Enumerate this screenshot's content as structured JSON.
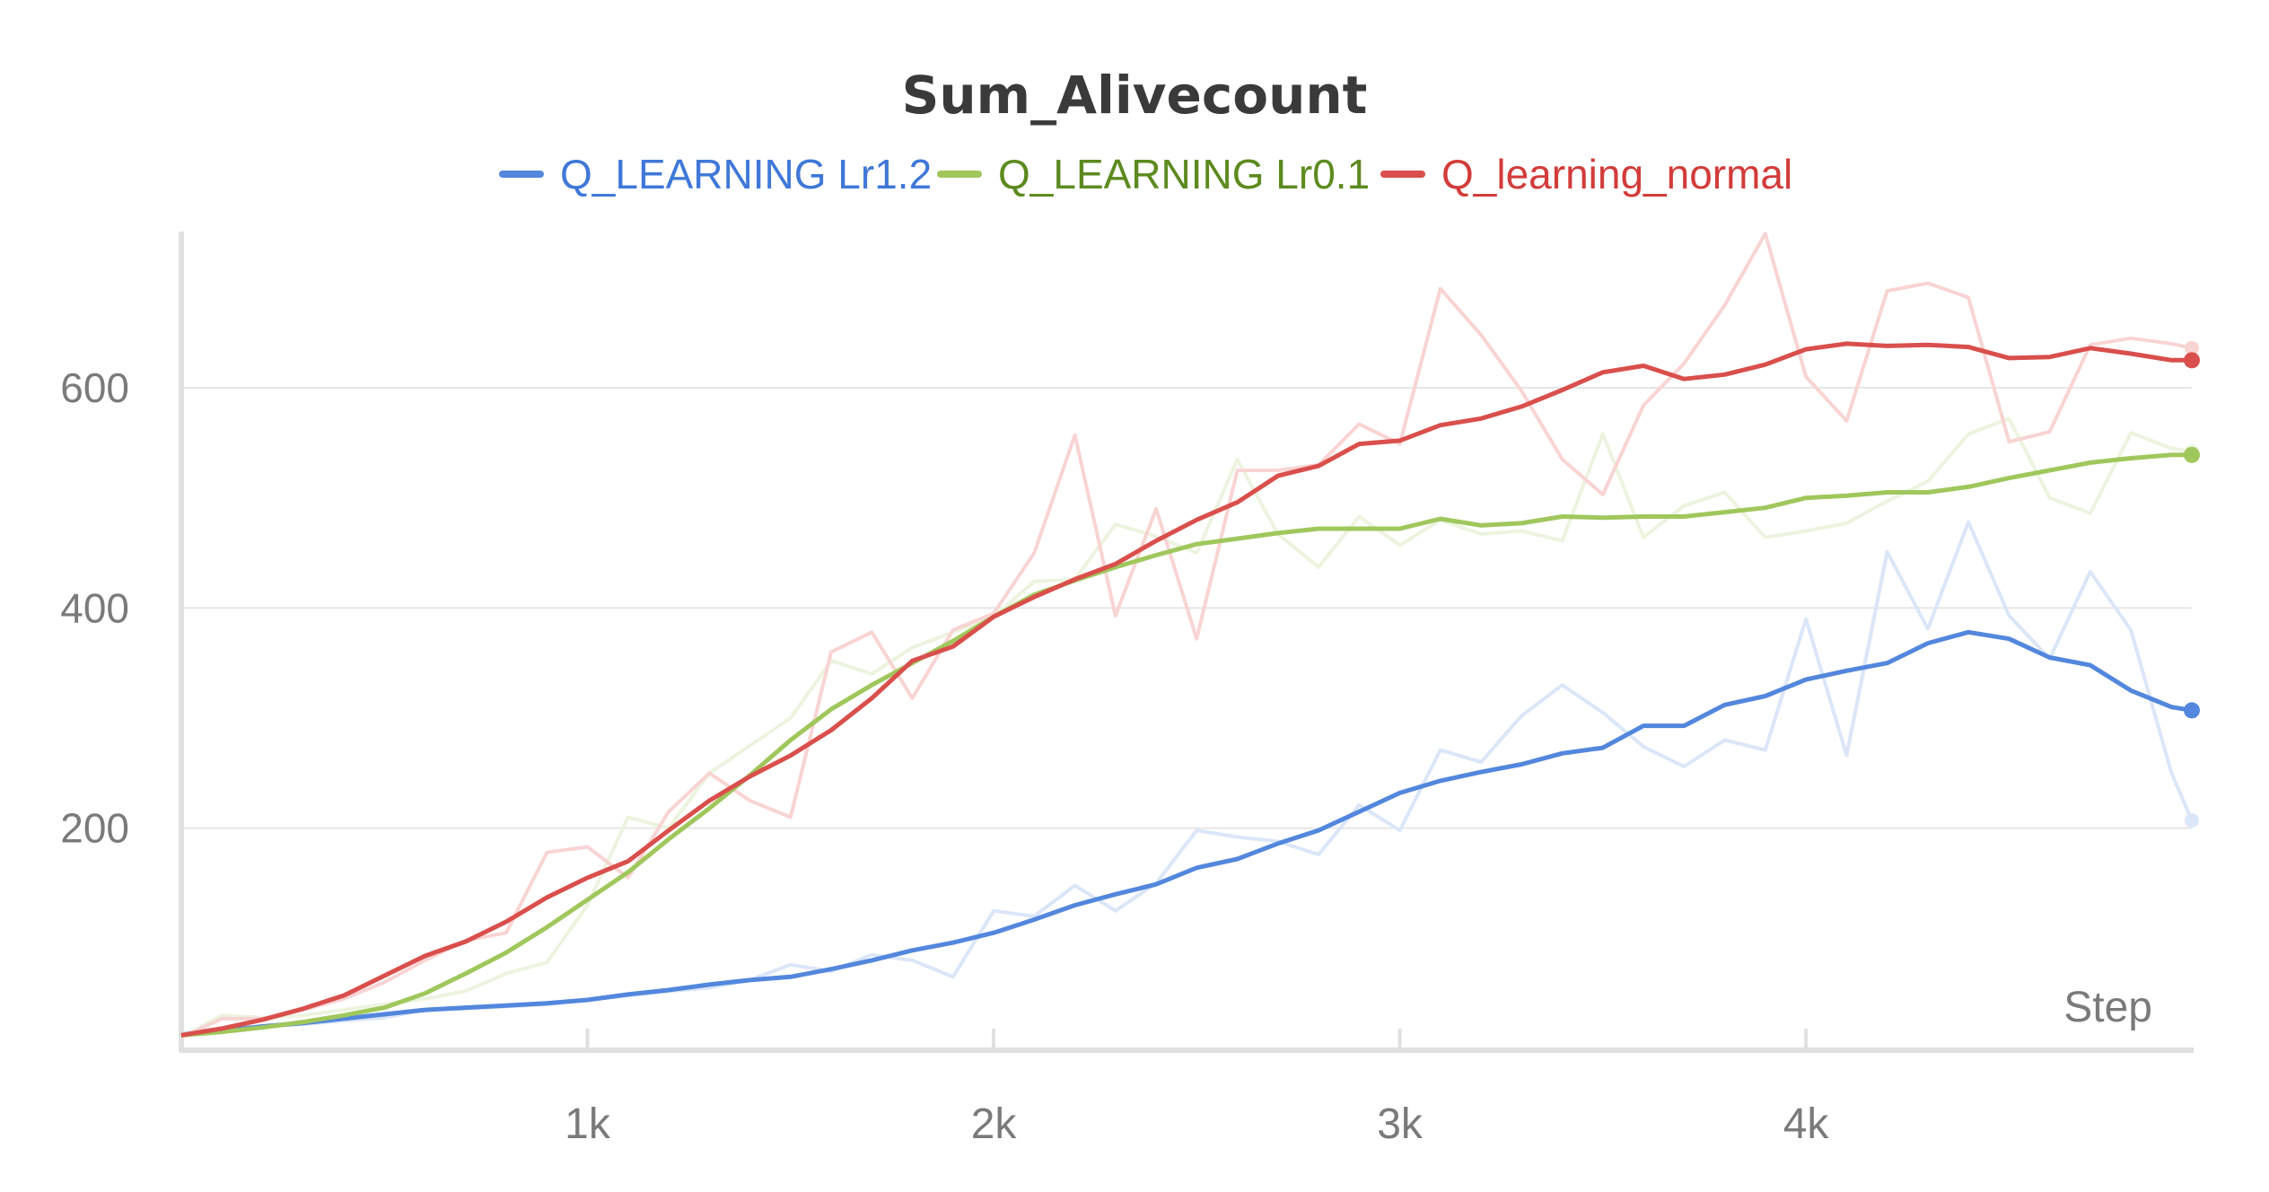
{
  "chart_data": {
    "type": "line",
    "title": "Sum_Alivecount",
    "xlabel": "Step",
    "ylabel": "",
    "xlim": [
      0,
      4950
    ],
    "ylim": [
      0,
      750
    ],
    "x_ticks": [
      1000,
      2000,
      3000,
      4000
    ],
    "x_tick_labels": [
      "1k",
      "2k",
      "3k",
      "4k"
    ],
    "y_ticks": [
      200,
      400,
      600
    ],
    "y_tick_labels": [
      "200",
      "400",
      "600"
    ],
    "grid": "horizontal",
    "legend": "top-center",
    "x": [
      0,
      100,
      200,
      300,
      400,
      500,
      600,
      700,
      800,
      900,
      1000,
      1100,
      1200,
      1300,
      1400,
      1500,
      1600,
      1700,
      1800,
      1900,
      2000,
      2100,
      2200,
      2300,
      2400,
      2500,
      2600,
      2700,
      2800,
      2900,
      3000,
      3100,
      3200,
      3300,
      3400,
      3500,
      3600,
      3700,
      3800,
      3900,
      4000,
      4100,
      4200,
      4300,
      4400,
      4500,
      4600,
      4700,
      4800,
      4900,
      4950
    ],
    "series": [
      {
        "name": "Q_LEARNING Lr1.2",
        "color": "#5387dd",
        "raw_color": "#dbe6f8",
        "smoothed": [
          12,
          16,
          20,
          23,
          27,
          31,
          35,
          37,
          39,
          41,
          44,
          49,
          53,
          58,
          62,
          65,
          72,
          80,
          89,
          96,
          105,
          117,
          130,
          140,
          149,
          164,
          172,
          186,
          198,
          215,
          232,
          243,
          251,
          258,
          268,
          273,
          293,
          293,
          312,
          320,
          335,
          343,
          350,
          368,
          378,
          372,
          355,
          348,
          325,
          310,
          307
        ],
        "raw": [
          14,
          18,
          20,
          22,
          25,
          28,
          35,
          36,
          38,
          40,
          44,
          48,
          52,
          55,
          62,
          76,
          70,
          85,
          80,
          65,
          125,
          120,
          148,
          125,
          150,
          198,
          192,
          188,
          176,
          221,
          198,
          271,
          260,
          302,
          330,
          305,
          274,
          256,
          280,
          271,
          390,
          266,
          451,
          381,
          478,
          393,
          354,
          433,
          380,
          250,
          207
        ]
      },
      {
        "name": "Q_LEARNING Lr0.1",
        "color": "#a0c75c",
        "raw_color": "#ecf4df",
        "smoothed": [
          12,
          15,
          19,
          24,
          30,
          37,
          50,
          68,
          87,
          110,
          135,
          160,
          190,
          218,
          248,
          280,
          308,
          330,
          350,
          370,
          392,
          412,
          425,
          437,
          448,
          458,
          463,
          468,
          472,
          472,
          472,
          481,
          475,
          477,
          483,
          482,
          483,
          483,
          487,
          491,
          500,
          502,
          505,
          505,
          510,
          518,
          525,
          532,
          536,
          539,
          539
        ],
        "raw": [
          10,
          30,
          28,
          30,
          35,
          40,
          45,
          52,
          68,
          78,
          130,
          210,
          200,
          250,
          275,
          300,
          352,
          340,
          364,
          378,
          392,
          424,
          426,
          476,
          465,
          450,
          535,
          467,
          437,
          483,
          457,
          480,
          467,
          470,
          461,
          558,
          464,
          493,
          505,
          464,
          470,
          477,
          497,
          515,
          558,
          572,
          500,
          486,
          559,
          545,
          542
        ]
      },
      {
        "name": "Q_learning_normal",
        "color": "#d94f4c",
        "raw_color": "#f8d4d3",
        "smoothed": [
          12,
          18,
          26,
          36,
          48,
          66,
          84,
          97,
          115,
          137,
          155,
          170,
          198,
          225,
          247,
          266,
          289,
          318,
          352,
          365,
          392,
          410,
          426,
          440,
          461,
          480,
          496,
          520,
          529,
          549,
          552,
          566,
          572,
          583,
          598,
          614,
          620,
          608,
          612,
          621,
          635,
          640,
          638,
          639,
          637,
          627,
          628,
          636,
          631,
          625,
          625
        ],
        "raw": [
          10,
          27,
          27,
          35,
          45,
          60,
          80,
          98,
          105,
          178,
          183,
          155,
          215,
          250,
          225,
          210,
          360,
          378,
          318,
          380,
          395,
          450,
          557,
          393,
          490,
          372,
          525,
          525,
          530,
          567,
          549,
          690,
          648,
          597,
          535,
          503,
          584,
          622,
          675,
          740,
          610,
          570,
          688,
          695,
          682,
          551,
          560,
          639,
          645,
          640,
          636
        ]
      }
    ]
  }
}
